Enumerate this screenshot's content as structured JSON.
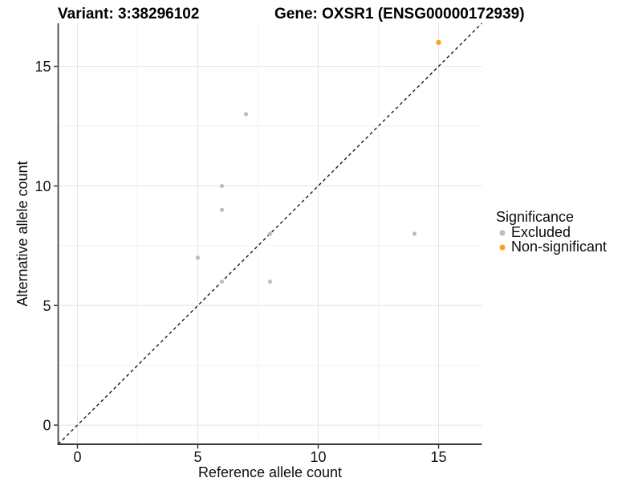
{
  "header": {
    "title_left": "Variant: 3:38296102",
    "title_right": "Gene: OXSR1 (ENSG00000172939)"
  },
  "chart_data": {
    "type": "scatter",
    "xlabel": "Reference allele count",
    "ylabel": "Alternative allele count",
    "xlim": [
      -0.8,
      16.8
    ],
    "ylim": [
      -0.8,
      16.8
    ],
    "x_ticks": [
      0,
      5,
      10,
      15
    ],
    "y_ticks": [
      0,
      5,
      10,
      15
    ],
    "minor_ticks": [
      2.5,
      7.5,
      12.5
    ],
    "grid": true,
    "legend_position": "right",
    "reference_line": {
      "equation": "y = x",
      "style": "dashed",
      "color": "#1a1a1a"
    },
    "series": [
      {
        "name": "Excluded",
        "color": "#bdbdbd",
        "radius": 2.6,
        "points": [
          [
            5,
            7
          ],
          [
            6,
            6
          ],
          [
            6,
            9
          ],
          [
            6,
            10
          ],
          [
            7,
            13
          ],
          [
            8,
            6
          ],
          [
            8,
            8
          ],
          [
            14,
            8
          ]
        ]
      },
      {
        "name": "Non-significant",
        "color": "#fda020",
        "radius": 3.2,
        "points": [
          [
            15,
            16
          ]
        ]
      }
    ],
    "legend": {
      "title": "Significance",
      "items": [
        {
          "label": "Excluded",
          "color": "#bdbdbd"
        },
        {
          "label": "Non-significant",
          "color": "#fda020"
        }
      ]
    }
  }
}
